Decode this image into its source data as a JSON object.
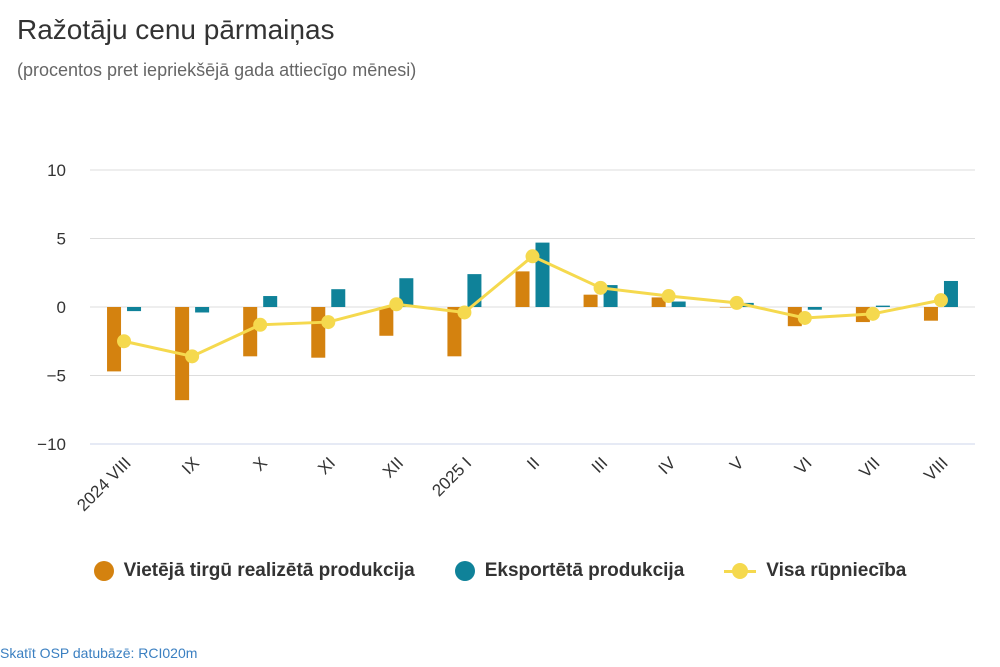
{
  "header": {
    "title": "Ražotāju cenu pārmaiņas",
    "subtitle": "(procentos pret iepriekšējā gada attiecīgo mēnesi)"
  },
  "colors": {
    "domestic": "#d4820f",
    "export": "#0f8299",
    "total": "#f5d94e",
    "grid": "#dddddd",
    "axis": "#ccd6eb"
  },
  "chart_data": {
    "type": "bar",
    "categories": [
      "2024 VIII",
      "IX",
      "X",
      "XI",
      "XII",
      "2025 I",
      "II",
      "III",
      "IV",
      "V",
      "VI",
      "VII",
      "VIII"
    ],
    "ylim": [
      -10,
      10
    ],
    "yticks": [
      10,
      5,
      0,
      -5,
      -10
    ],
    "ytick_labels": [
      "10",
      "5",
      "0",
      "−5",
      "−10"
    ],
    "series": [
      {
        "name": "Vietējā tirgū realizētā produkcija",
        "type": "bar",
        "values": [
          -4.7,
          -6.8,
          -3.6,
          -3.7,
          -2.1,
          -3.6,
          2.6,
          0.9,
          0.7,
          0.0,
          -1.4,
          -1.1,
          -1.0
        ]
      },
      {
        "name": "Eksportētā produkcija",
        "type": "bar",
        "values": [
          -0.3,
          -0.4,
          0.8,
          1.3,
          2.1,
          2.4,
          4.7,
          1.6,
          0.4,
          0.3,
          -0.2,
          0.1,
          1.9
        ]
      },
      {
        "name": "Visa rūpniecība",
        "type": "line",
        "values": [
          -2.5,
          -3.6,
          -1.3,
          -1.1,
          0.2,
          -0.4,
          3.7,
          1.4,
          0.8,
          0.3,
          -0.8,
          -0.5,
          0.5
        ]
      }
    ],
    "grid": true,
    "legend_position": "bottom-center"
  },
  "footer": {
    "source_link": "Skatīt OSP datubāzē: RCI020m"
  }
}
